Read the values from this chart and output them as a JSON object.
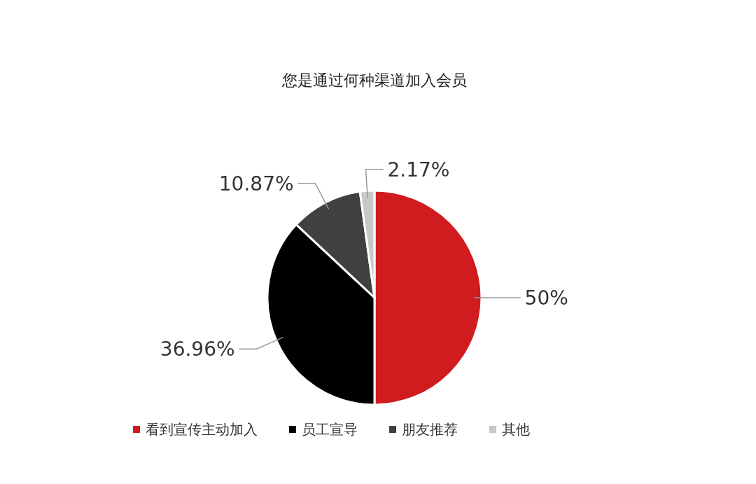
{
  "chart_data": {
    "type": "pie",
    "title": "您是通过何种渠道加入会员",
    "categories": [
      "看到宣传主动加入",
      "员工宣导",
      "朋友推荐",
      "其他"
    ],
    "values": [
      50,
      36.96,
      10.87,
      2.17
    ],
    "colors": [
      "#d01c1f",
      "#000000",
      "#404040",
      "#c8c8c8"
    ],
    "value_labels": [
      "50%",
      "36.96%",
      "10.87%",
      "2.17%"
    ],
    "legend": "bottom"
  }
}
